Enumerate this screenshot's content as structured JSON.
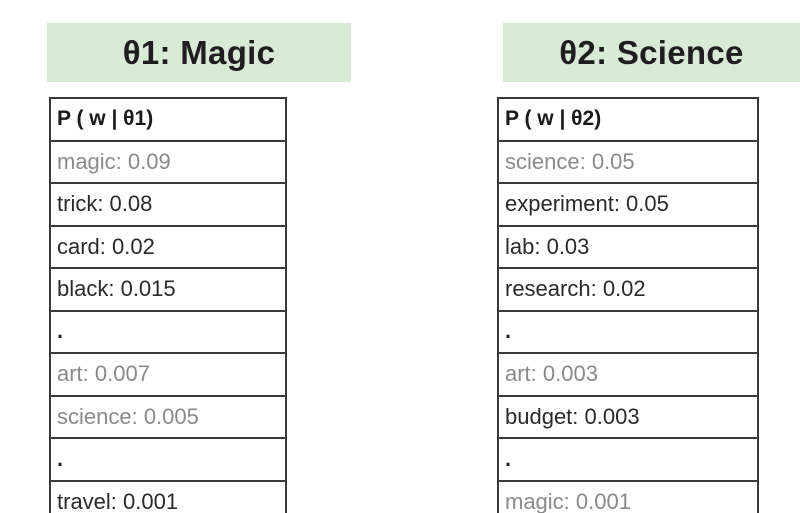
{
  "topics": [
    {
      "title": "θ1: Magic",
      "table_header": "P ( w | θ1)",
      "rows": [
        {
          "text": "magic: 0.09",
          "style": "muted"
        },
        {
          "text": "trick: 0.08",
          "style": "normal"
        },
        {
          "text": "card: 0.02",
          "style": "normal"
        },
        {
          "text": "black: 0.015",
          "style": "normal"
        },
        {
          "text": ".",
          "style": "ellipsis"
        },
        {
          "text": "art: 0.007",
          "style": "muted"
        },
        {
          "text": "science: 0.005",
          "style": "muted"
        },
        {
          "text": ".",
          "style": "ellipsis"
        },
        {
          "text": "travel: 0.001",
          "style": "normal"
        }
      ]
    },
    {
      "title": "θ2: Science",
      "table_header": "P ( w | θ2)",
      "rows": [
        {
          "text": "science: 0.05",
          "style": "muted"
        },
        {
          "text": "experiment: 0.05",
          "style": "normal"
        },
        {
          "text": "lab: 0.03",
          "style": "normal"
        },
        {
          "text": "research: 0.02",
          "style": "normal"
        },
        {
          "text": ".",
          "style": "ellipsis"
        },
        {
          "text": "art: 0.003",
          "style": "muted"
        },
        {
          "text": "budget: 0.003",
          "style": "normal"
        },
        {
          "text": ".",
          "style": "ellipsis"
        },
        {
          "text": "magic: 0.001",
          "style": "muted"
        }
      ]
    }
  ],
  "colors": {
    "header_bg": "#d9ead6",
    "border": "#3a3a3a",
    "muted_text": "#8a8a8a",
    "text": "#2a2a2a"
  }
}
